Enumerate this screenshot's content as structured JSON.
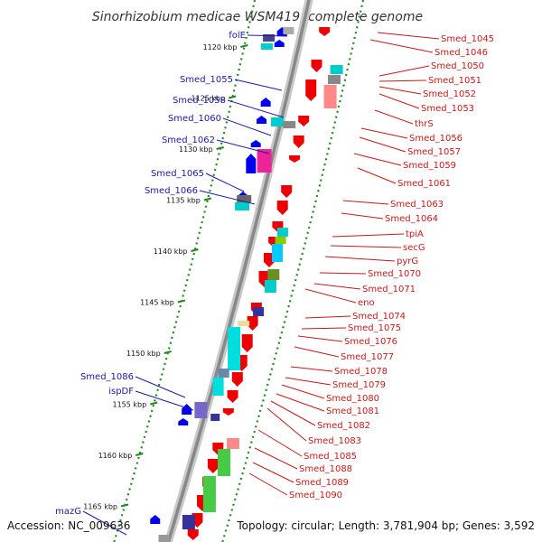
{
  "map": {
    "title": "Sinorhizobium medicae WSM419, complete genome",
    "accession": "Accession: NC_009636",
    "topology": "Topology: circular; Length: 3,781,904 bp; Genes: 3,592",
    "colors": {
      "backbone": "#888888",
      "forward_gene": "#0000ee",
      "reverse_gene": "#ee0000",
      "left_label": "#1a1aa6",
      "right_label": "#c81818",
      "tick_dots": "#228822"
    }
  },
  "scale_marks": [
    {
      "label": "1120 kbp",
      "kbp": 1120
    },
    {
      "label": "1125 kbp",
      "kbp": 1125
    },
    {
      "label": "1130 kbp",
      "kbp": 1130
    },
    {
      "label": "1135 kbp",
      "kbp": 1135
    },
    {
      "label": "1140 kbp",
      "kbp": 1140
    },
    {
      "label": "1145 kbp",
      "kbp": 1145
    },
    {
      "label": "1150 kbp",
      "kbp": 1150
    },
    {
      "label": "1155 kbp",
      "kbp": 1155
    },
    {
      "label": "1160 kbp",
      "kbp": 1160
    },
    {
      "label": "1165 kbp",
      "kbp": 1165
    }
  ],
  "forward_genes": [
    "folE",
    "Smed_1055",
    "Smed_1058",
    "Smed_1060",
    "Smed_1062",
    "Smed_1065",
    "Smed_1066",
    "Smed_1086",
    "ispDF",
    "mazG"
  ],
  "reverse_genes": [
    "Smed_1045",
    "Smed_1046",
    "Smed_1050",
    "Smed_1051",
    "Smed_1052",
    "Smed_1053",
    "thrS",
    "Smed_1056",
    "Smed_1057",
    "Smed_1059",
    "Smed_1061",
    "Smed_1063",
    "Smed_1064",
    "tpiA",
    "secG",
    "pyrG",
    "Smed_1070",
    "Smed_1071",
    "eno",
    "Smed_1074",
    "Smed_1075",
    "Smed_1076",
    "Smed_1077",
    "Smed_1078",
    "Smed_1079",
    "Smed_1080",
    "Smed_1081",
    "Smed_1082",
    "Smed_1083",
    "Smed_1085",
    "Smed_1088",
    "Smed_1089",
    "Smed_1090"
  ]
}
